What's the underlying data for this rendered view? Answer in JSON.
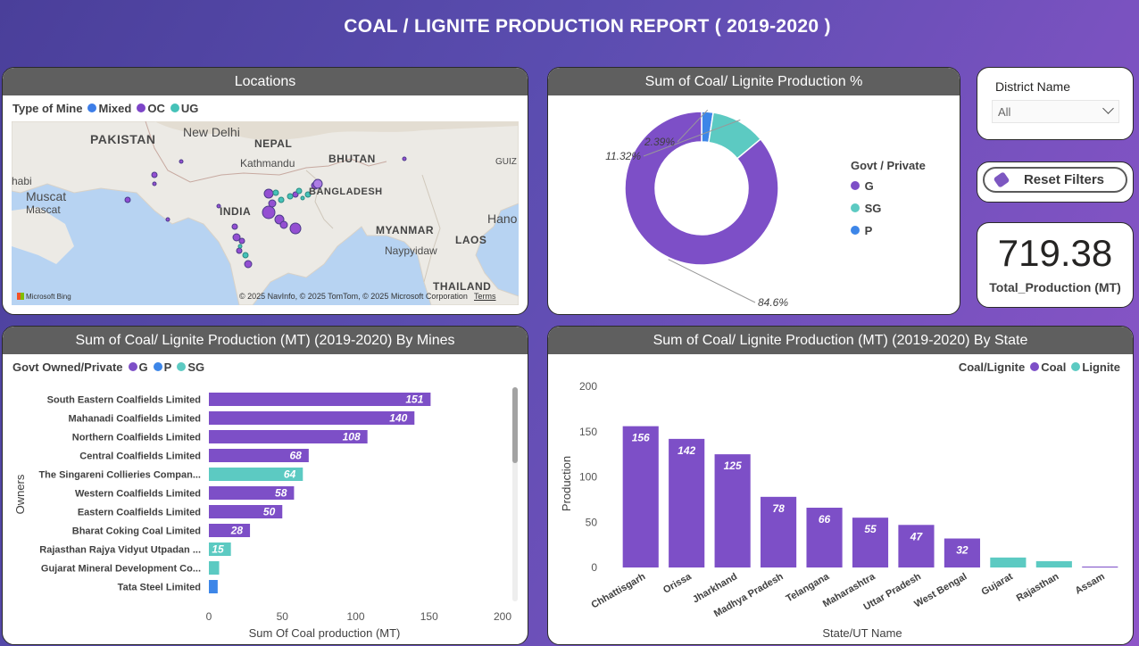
{
  "report": {
    "title": "COAL / LIGNITE PRODUCTION REPORT ( 2019-2020 )"
  },
  "locations": {
    "title": "Locations",
    "legend_title": "Type of Mine",
    "legend": [
      {
        "label": "Mixed",
        "color": "#3d7ee8"
      },
      {
        "label": "OC",
        "color": "#7d45c8"
      },
      {
        "label": "UG",
        "color": "#45c2b8"
      }
    ],
    "map_labels": [
      "PAKISTAN",
      "New Delhi",
      "NEPAL",
      "Kathmandu",
      "BHUTAN",
      "GUIZ",
      "habi",
      "Muscat",
      "Mascat",
      "BANGLADESH",
      "INDIA",
      "MYANMAR",
      "Hano",
      "LAOS",
      "Naypyidaw",
      "THAILAND"
    ],
    "brand": "Microsoft Bing",
    "copyright": "© 2025 NavInfo, © 2025 TomTom, © 2025 Microsoft Corporation",
    "terms": "Terms"
  },
  "donut": {
    "title": "Sum of Coal/ Lignite Production %",
    "legend_title": "Govt / Private",
    "chart_data": {
      "type": "pie",
      "categories": [
        "G",
        "SG",
        "P"
      ],
      "values": [
        84.6,
        11.32,
        2.39
      ],
      "labels": [
        "84.6%",
        "11.32%",
        "2.39%"
      ],
      "colors": [
        "#7d4fc7",
        "#5ccac2",
        "#3d86e8"
      ],
      "legend_position": "right"
    }
  },
  "slicer": {
    "label": "District Name",
    "value": "All"
  },
  "reset": {
    "label": "Reset Filters"
  },
  "kpi": {
    "value": "719.38",
    "label": "Total_Production (MT)"
  },
  "mines": {
    "title": "Sum of Coal/ Lignite Production (MT) (2019-2020) By Mines",
    "legend_title": "Govt Owned/Private",
    "legend": [
      {
        "label": "G",
        "color": "#7d4fc7"
      },
      {
        "label": "P",
        "color": "#3d86e8"
      },
      {
        "label": "SG",
        "color": "#5ccac2"
      }
    ],
    "chart_data": {
      "type": "bar",
      "orientation": "horizontal",
      "categories": [
        "South Eastern Coalfields Limited",
        "Mahanadi Coalfields Limited",
        "Northern Coalfields Limited",
        "Central Coalfields Limited",
        "The Singareni Collieries Compan...",
        "Western Coalfields Limited",
        "Eastern Coalfields Limited",
        "Bharat Coking Coal Limited",
        "Rajasthan Rajya Vidyut Utpadan ...",
        "Gujarat Mineral Development Co...",
        "Tata Steel Limited"
      ],
      "values": [
        151,
        140,
        108,
        68,
        64,
        58,
        50,
        28,
        15,
        7,
        6
      ],
      "data_labels": [
        "151",
        "140",
        "108",
        "68",
        "64",
        "58",
        "50",
        "28",
        "15",
        "",
        ""
      ],
      "group": [
        "G",
        "G",
        "G",
        "G",
        "SG",
        "G",
        "G",
        "G",
        "SG",
        "SG",
        "P"
      ],
      "xlim": [
        0,
        200
      ],
      "xticks": [
        "0",
        "50",
        "100",
        "150",
        "200"
      ],
      "xlabel": "Sum Of Coal production (MT)",
      "ylabel": "Owners"
    }
  },
  "state": {
    "title": "Sum of Coal/ Lignite Production (MT) (2019-2020) By State",
    "legend_title": "Coal/Lignite",
    "legend": [
      {
        "label": "Coal",
        "color": "#7d4fc7"
      },
      {
        "label": "Lignite",
        "color": "#5ccac2"
      }
    ],
    "chart_data": {
      "type": "bar",
      "categories": [
        "Chhattisgarh",
        "Orissa",
        "Jharkhand",
        "Madhya Pradesh",
        "Telangana",
        "Maharashtra",
        "Uttar Pradesh",
        "West Bengal",
        "Gujarat",
        "Rajasthan",
        "Assam"
      ],
      "values": [
        156,
        142,
        125,
        78,
        66,
        55,
        47,
        32,
        11,
        7,
        1
      ],
      "data_labels": [
        "156",
        "142",
        "125",
        "78",
        "66",
        "55",
        "47",
        "32",
        "",
        "",
        ""
      ],
      "group": [
        "Coal",
        "Coal",
        "Coal",
        "Coal",
        "Coal",
        "Coal",
        "Coal",
        "Coal",
        "Lignite",
        "Lignite",
        "Coal"
      ],
      "ylim": [
        0,
        200
      ],
      "yticks": [
        "0",
        "50",
        "100",
        "150",
        "200"
      ],
      "xlabel": "State/UT Name",
      "ylabel": "Production"
    }
  }
}
